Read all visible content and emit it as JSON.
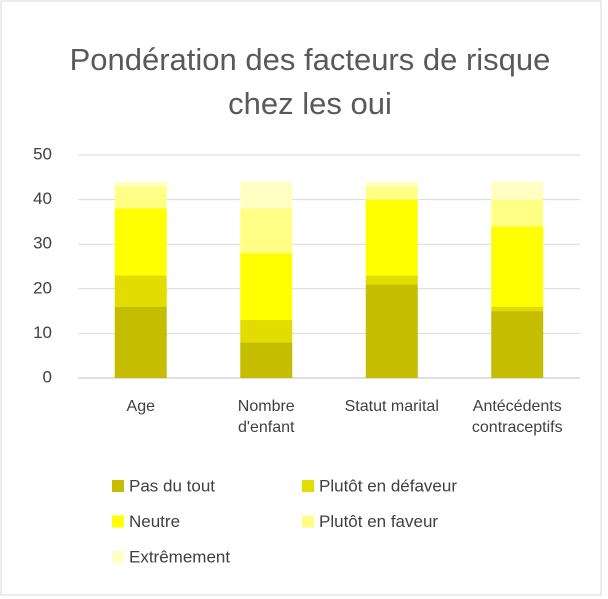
{
  "chart_data": {
    "type": "stacked_bar",
    "title": "Pondération des facteurs de risque chez les oui",
    "categories": [
      "Age",
      "Nombre d'enfant",
      "Statut marital",
      "Antécédents contraceptifs"
    ],
    "series": [
      {
        "name": "Pas du tout",
        "color": "#c4bd00",
        "values": [
          16,
          8,
          21,
          15
        ]
      },
      {
        "name": "Plutôt en défaveur",
        "color": "#e2dc00",
        "values": [
          7,
          5,
          2,
          1
        ]
      },
      {
        "name": "Neutre",
        "color": "#ffff00",
        "values": [
          15,
          15,
          17,
          18
        ]
      },
      {
        "name": "Plutôt en faveur",
        "color": "#ffff85",
        "values": [
          5,
          10,
          3,
          6
        ]
      },
      {
        "name": "Extrêmement",
        "color": "#ffffc4",
        "values": [
          1,
          6,
          1,
          4
        ]
      }
    ],
    "ylim": [
      0,
      50
    ],
    "yticks": [
      0,
      10,
      20,
      30,
      40,
      50
    ],
    "grid": true,
    "legend": "bottom"
  }
}
